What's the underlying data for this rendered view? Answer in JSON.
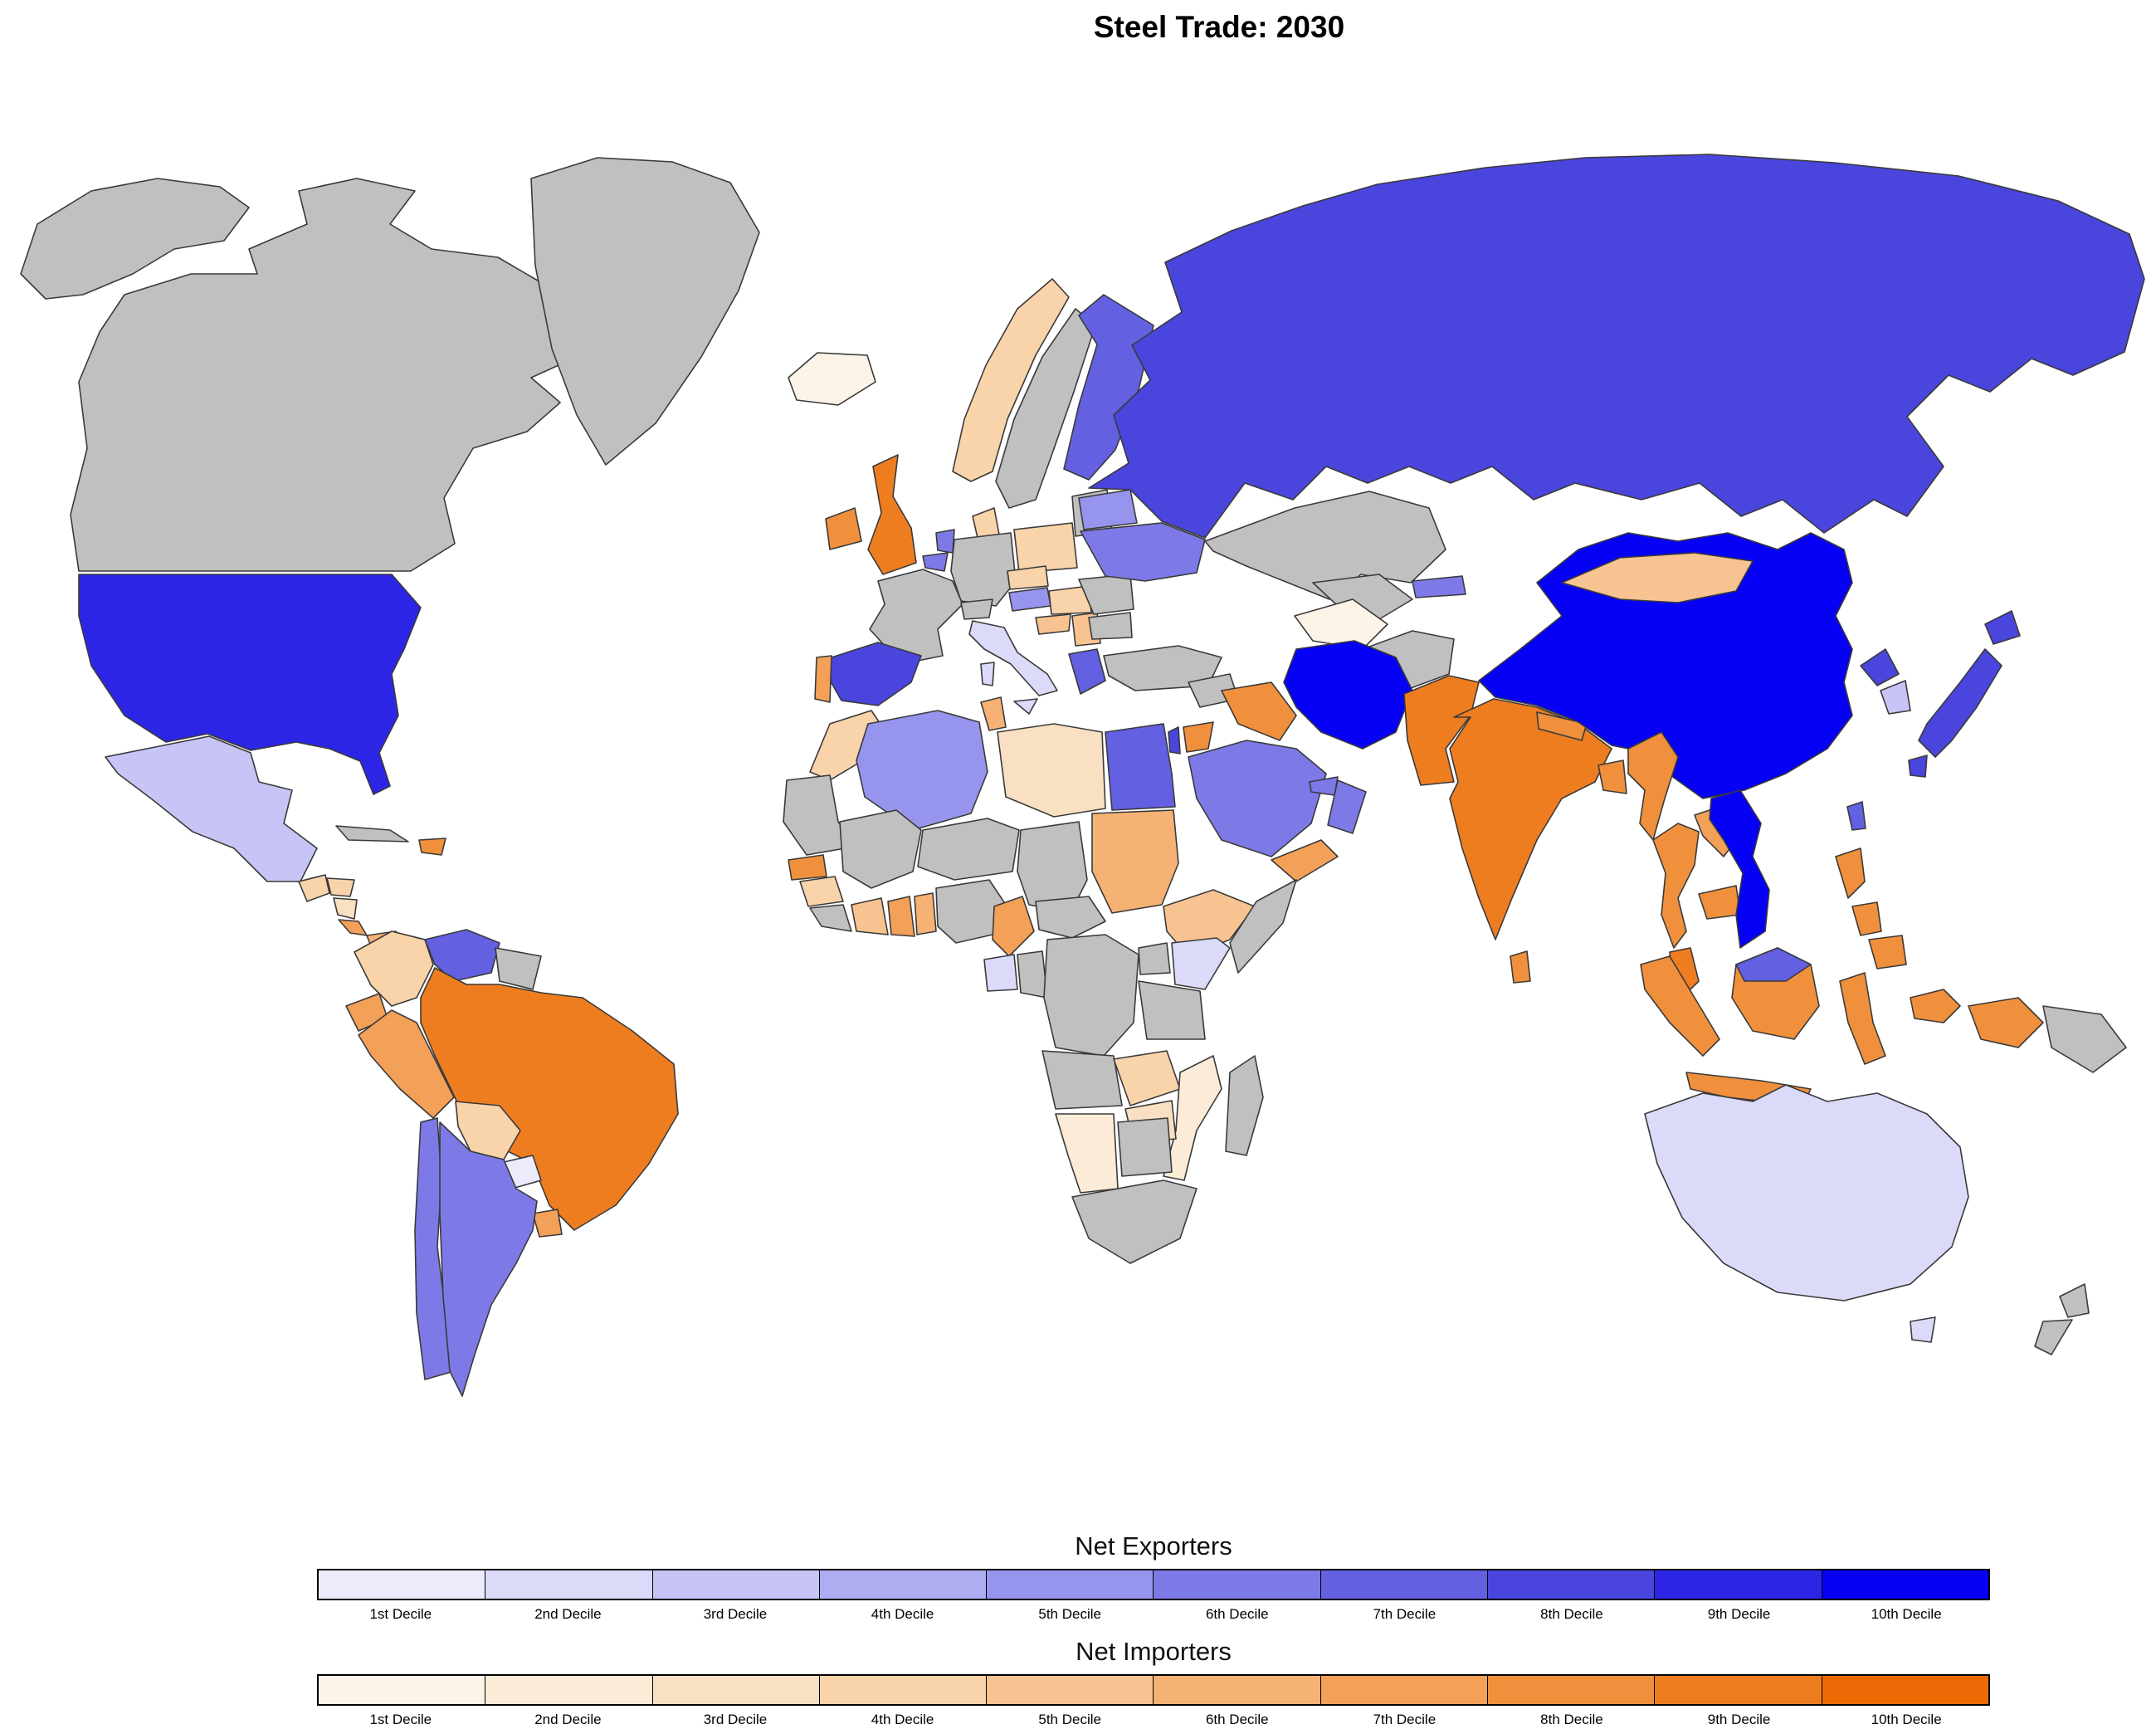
{
  "title": "Steel Trade: 2030",
  "legend": {
    "exporters": {
      "title": "Net Exporters",
      "deciles": [
        "1st Decile",
        "2nd Decile",
        "3rd Decile",
        "4th Decile",
        "5th Decile",
        "6th Decile",
        "7th Decile",
        "8th Decile",
        "9th Decile",
        "10th Decile"
      ],
      "colors": [
        "#ebebfc",
        "#dbdaf9",
        "#c6c5f5",
        "#aeadf1",
        "#9694ec",
        "#7d7ae7",
        "#6360e2",
        "#4a45dc",
        "#2d25e5",
        "#0600f5"
      ]
    },
    "importers": {
      "title": "Net Importers",
      "deciles": [
        "1st Decile",
        "2nd Decile",
        "3rd Decile",
        "4th Decile",
        "5th Decile",
        "6th Decile",
        "7th Decile",
        "8th Decile",
        "9th Decile",
        "10th Decile"
      ],
      "colors": [
        "#fdf4e8",
        "#fcebd7",
        "#fae0c2",
        "#f9d3aa",
        "#f7c390",
        "#f5b274",
        "#f3a058",
        "#f0903d",
        "#ee7d20",
        "#eb6a05"
      ]
    }
  },
  "map": {
    "type": "choropleth",
    "no_data_color": "#c0c0c0",
    "border_color": "#3a3a3a",
    "ocean_color": "#ffffff",
    "countries": [
      {
        "name": "United States",
        "group": "exporter",
        "decile": 9
      },
      {
        "name": "Mexico",
        "group": "exporter",
        "decile": 3
      },
      {
        "name": "Venezuela",
        "group": "exporter",
        "decile": 7
      },
      {
        "name": "Paraguay",
        "group": "exporter",
        "decile": 1
      },
      {
        "name": "Chile",
        "group": "exporter",
        "decile": 6
      },
      {
        "name": "Argentina",
        "group": "exporter",
        "decile": 6
      },
      {
        "name": "Spain",
        "group": "exporter",
        "decile": 8
      },
      {
        "name": "Italy",
        "group": "exporter",
        "decile": 2
      },
      {
        "name": "Greece",
        "group": "exporter",
        "decile": 7
      },
      {
        "name": "Austria",
        "group": "exporter",
        "decile": 5
      },
      {
        "name": "Netherlands",
        "group": "exporter",
        "decile": 6
      },
      {
        "name": "Belgium",
        "group": "exporter",
        "decile": 6
      },
      {
        "name": "Finland",
        "group": "exporter",
        "decile": 7
      },
      {
        "name": "Belarus",
        "group": "exporter",
        "decile": 5
      },
      {
        "name": "Ukraine",
        "group": "exporter",
        "decile": 6
      },
      {
        "name": "Russia",
        "group": "exporter",
        "decile": 8
      },
      {
        "name": "Kyrgyzstan",
        "group": "exporter",
        "decile": 6
      },
      {
        "name": "Iran",
        "group": "exporter",
        "decile": 10
      },
      {
        "name": "Saudi Arabia",
        "group": "exporter",
        "decile": 6
      },
      {
        "name": "Oman",
        "group": "exporter",
        "decile": 6
      },
      {
        "name": "United Arab Emirates",
        "group": "exporter",
        "decile": 6
      },
      {
        "name": "Israel",
        "group": "exporter",
        "decile": 8
      },
      {
        "name": "Egypt",
        "group": "exporter",
        "decile": 7
      },
      {
        "name": "Algeria",
        "group": "exporter",
        "decile": 5
      },
      {
        "name": "Gabon",
        "group": "exporter",
        "decile": 2
      },
      {
        "name": "Kenya",
        "group": "exporter",
        "decile": 2
      },
      {
        "name": "China",
        "group": "exporter",
        "decile": 10
      },
      {
        "name": "North Korea",
        "group": "exporter",
        "decile": 8
      },
      {
        "name": "South Korea",
        "group": "exporter",
        "decile": 3
      },
      {
        "name": "Japan",
        "group": "exporter",
        "decile": 8
      },
      {
        "name": "Taiwan",
        "group": "exporter",
        "decile": 7
      },
      {
        "name": "Vietnam",
        "group": "exporter",
        "decile": 10
      },
      {
        "name": "Brunei",
        "group": "exporter",
        "decile": 7
      },
      {
        "name": "Australia",
        "group": "exporter",
        "decile": 2
      },
      {
        "name": "Iceland",
        "group": "importer",
        "decile": 1
      },
      {
        "name": "United Kingdom",
        "group": "importer",
        "decile": 9
      },
      {
        "name": "Ireland",
        "group": "importer",
        "decile": 8
      },
      {
        "name": "Norway",
        "group": "importer",
        "decile": 4
      },
      {
        "name": "Denmark",
        "group": "importer",
        "decile": 4
      },
      {
        "name": "Poland",
        "group": "importer",
        "decile": 4
      },
      {
        "name": "Czechia",
        "group": "importer",
        "decile": 4
      },
      {
        "name": "Hungary",
        "group": "importer",
        "decile": 4
      },
      {
        "name": "Croatia",
        "group": "importer",
        "decile": 5
      },
      {
        "name": "Serbia",
        "group": "importer",
        "decile": 5
      },
      {
        "name": "Portugal",
        "group": "importer",
        "decile": 7
      },
      {
        "name": "Morocco",
        "group": "importer",
        "decile": 4
      },
      {
        "name": "Tunisia",
        "group": "importer",
        "decile": 6
      },
      {
        "name": "Libya",
        "group": "importer",
        "decile": 3
      },
      {
        "name": "Sudan",
        "group": "importer",
        "decile": 6
      },
      {
        "name": "Senegal",
        "group": "importer",
        "decile": 8
      },
      {
        "name": "Guinea",
        "group": "importer",
        "decile": 4
      },
      {
        "name": "Cote d'Ivoire",
        "group": "importer",
        "decile": 5
      },
      {
        "name": "Ghana",
        "group": "importer",
        "decile": 7
      },
      {
        "name": "Benin",
        "group": "importer",
        "decile": 6
      },
      {
        "name": "Cameroon",
        "group": "importer",
        "decile": 7
      },
      {
        "name": "Ethiopia",
        "group": "importer",
        "decile": 5
      },
      {
        "name": "Zambia",
        "group": "importer",
        "decile": 4
      },
      {
        "name": "Zimbabwe",
        "group": "importer",
        "decile": 3
      },
      {
        "name": "Mozambique",
        "group": "importer",
        "decile": 2
      },
      {
        "name": "Namibia",
        "group": "importer",
        "decile": 2
      },
      {
        "name": "Turkmenistan",
        "group": "importer",
        "decile": 1
      },
      {
        "name": "Mongolia",
        "group": "importer",
        "decile": 5
      },
      {
        "name": "Iraq",
        "group": "importer",
        "decile": 8
      },
      {
        "name": "Jordan",
        "group": "importer",
        "decile": 8
      },
      {
        "name": "Yemen",
        "group": "importer",
        "decile": 7
      },
      {
        "name": "Pakistan",
        "group": "importer",
        "decile": 9
      },
      {
        "name": "India",
        "group": "importer",
        "decile": 9
      },
      {
        "name": "Nepal",
        "group": "importer",
        "decile": 8
      },
      {
        "name": "Bangladesh",
        "group": "importer",
        "decile": 8
      },
      {
        "name": "Sri Lanka",
        "group": "importer",
        "decile": 8
      },
      {
        "name": "Myanmar",
        "group": "importer",
        "decile": 8
      },
      {
        "name": "Thailand",
        "group": "importer",
        "decile": 8
      },
      {
        "name": "Laos",
        "group": "importer",
        "decile": 7
      },
      {
        "name": "Cambodia",
        "group": "importer",
        "decile": 8
      },
      {
        "name": "Malaysia",
        "group": "importer",
        "decile": 9
      },
      {
        "name": "Indonesia",
        "group": "importer",
        "decile": 8
      },
      {
        "name": "Philippines",
        "group": "importer",
        "decile": 8
      },
      {
        "name": "Guatemala",
        "group": "importer",
        "decile": 4
      },
      {
        "name": "Honduras",
        "group": "importer",
        "decile": 4
      },
      {
        "name": "Nicaragua",
        "group": "importer",
        "decile": 3
      },
      {
        "name": "Costa Rica",
        "group": "importer",
        "decile": 7
      },
      {
        "name": "Panama",
        "group": "importer",
        "decile": 6
      },
      {
        "name": "Dominican Republic",
        "group": "importer",
        "decile": 8
      },
      {
        "name": "Colombia",
        "group": "importer",
        "decile": 4
      },
      {
        "name": "Ecuador",
        "group": "importer",
        "decile": 7
      },
      {
        "name": "Peru",
        "group": "importer",
        "decile": 7
      },
      {
        "name": "Brazil",
        "group": "importer",
        "decile": 9
      },
      {
        "name": "Bolivia",
        "group": "importer",
        "decile": 4
      },
      {
        "name": "Uruguay",
        "group": "importer",
        "decile": 7
      },
      {
        "name": "Alaska",
        "group": "none",
        "decile": null
      },
      {
        "name": "Canada",
        "group": "none",
        "decile": null
      },
      {
        "name": "Greenland",
        "group": "none",
        "decile": null
      },
      {
        "name": "Cuba",
        "group": "none",
        "decile": null
      },
      {
        "name": "Guyana",
        "group": "none",
        "decile": null
      },
      {
        "name": "France",
        "group": "none",
        "decile": null
      },
      {
        "name": "Germany",
        "group": "none",
        "decile": null
      },
      {
        "name": "Switzerland",
        "group": "none",
        "decile": null
      },
      {
        "name": "Sweden",
        "group": "none",
        "decile": null
      },
      {
        "name": "Baltic States",
        "group": "none",
        "decile": null
      },
      {
        "name": "Romania",
        "group": "none",
        "decile": null
      },
      {
        "name": "Bulgaria",
        "group": "none",
        "decile": null
      },
      {
        "name": "Turkey",
        "group": "none",
        "decile": null
      },
      {
        "name": "Syria",
        "group": "none",
        "decile": null
      },
      {
        "name": "Kazakhstan",
        "group": "none",
        "decile": null
      },
      {
        "name": "Uzbekistan",
        "group": "none",
        "decile": null
      },
      {
        "name": "Afghanistan",
        "group": "none",
        "decile": null
      },
      {
        "name": "Mauritania",
        "group": "none",
        "decile": null
      },
      {
        "name": "Mali",
        "group": "none",
        "decile": null
      },
      {
        "name": "Niger",
        "group": "none",
        "decile": null
      },
      {
        "name": "Chad",
        "group": "none",
        "decile": null
      },
      {
        "name": "Nigeria",
        "group": "none",
        "decile": null
      },
      {
        "name": "Liberia",
        "group": "none",
        "decile": null
      },
      {
        "name": "Central African Republic",
        "group": "none",
        "decile": null
      },
      {
        "name": "Congo",
        "group": "none",
        "decile": null
      },
      {
        "name": "DR Congo",
        "group": "none",
        "decile": null
      },
      {
        "name": "Uganda",
        "group": "none",
        "decile": null
      },
      {
        "name": "Tanzania",
        "group": "none",
        "decile": null
      },
      {
        "name": "Somalia",
        "group": "none",
        "decile": null
      },
      {
        "name": "Angola",
        "group": "none",
        "decile": null
      },
      {
        "name": "Botswana",
        "group": "none",
        "decile": null
      },
      {
        "name": "South Africa",
        "group": "none",
        "decile": null
      },
      {
        "name": "Madagascar",
        "group": "none",
        "decile": null
      },
      {
        "name": "Papua New Guinea",
        "group": "none",
        "decile": null
      },
      {
        "name": "New Zealand",
        "group": "none",
        "decile": null
      }
    ]
  }
}
